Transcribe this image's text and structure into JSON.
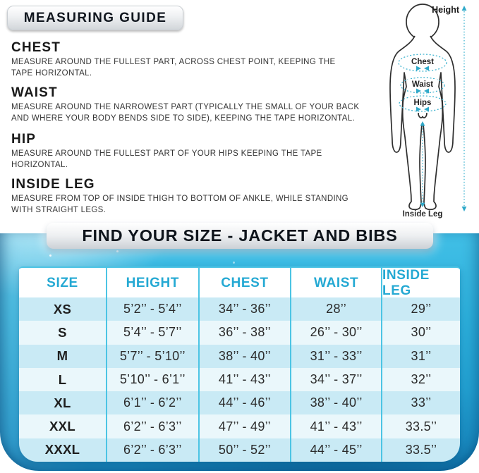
{
  "measuring_guide": {
    "title": "MEASURING GUIDE",
    "sections": [
      {
        "heading": "CHEST",
        "description": "MEASURE AROUND THE FULLEST PART, ACROSS CHEST POINT, KEEPING THE TAPE HORIZONTAL."
      },
      {
        "heading": "WAIST",
        "description": "MEASURE AROUND THE NARROWEST PART (TYPICALLY THE SMALL OF YOUR BACK AND WHERE YOUR BODY BENDS SIDE TO SIDE), KEEPING THE TAPE HORIZONTAL."
      },
      {
        "heading": "HIP",
        "description": "MEASURE AROUND THE FULLEST PART OF YOUR HIPS KEEPING THE TAPE HORIZONTAL."
      },
      {
        "heading": "INSIDE LEG",
        "description": "MEASURE FROM TOP OF INSIDE THIGH TO BOTTOM OF ANKLE, WHILE STANDING WITH STRAIGHT LEGS."
      }
    ],
    "figure_labels": {
      "height": "Height",
      "chest": "Chest",
      "waist": "Waist",
      "hips": "Hips",
      "inside_leg": "Inside Leg"
    }
  },
  "size_chart": {
    "title": "FIND YOUR SIZE - JACKET AND BIBS",
    "columns": [
      "SIZE",
      "HEIGHT",
      "CHEST",
      "WAIST",
      "INSIDE LEG"
    ],
    "rows": [
      {
        "size": "XS",
        "height": "5’2’’ - 5’4’’",
        "chest": "34’’ - 36’’",
        "waist": "28’’",
        "inside_leg": "29’’"
      },
      {
        "size": "S",
        "height": "5’4’’ - 5’7’’",
        "chest": "36’’ - 38’’",
        "waist": "26’’ - 30’’",
        "inside_leg": "30’’"
      },
      {
        "size": "M",
        "height": "5’7’’ - 5’10’’",
        "chest": "38’’ - 40’’",
        "waist": "31’’ - 33’’",
        "inside_leg": "31’’"
      },
      {
        "size": "L",
        "height": "5’10’’ - 6’1’’",
        "chest": "41’’ - 43’’",
        "waist": "34’’ - 37’’",
        "inside_leg": "32’’"
      },
      {
        "size": "XL",
        "height": "6’1’’ - 6’2’’",
        "chest": "44’’ - 46’’",
        "waist": "38’’ - 40’’",
        "inside_leg": "33’’"
      },
      {
        "size": "XXL",
        "height": "6’2’’ - 6’3’’",
        "chest": "47’’ - 49’’",
        "waist": "41’’ - 43’’",
        "inside_leg": "33.5’’"
      },
      {
        "size": "XXXL",
        "height": "6’2’’ - 6’3’’",
        "chest": "50’’ - 52’’",
        "waist": "44’’ - 45’’",
        "inside_leg": "33.5’’"
      }
    ]
  },
  "colors": {
    "accent_cyan_text": "#25a9d3",
    "table_divider": "#4cc4e4",
    "row_alternate": "#c9eaf5",
    "row_light": "#eaf7fb",
    "water_top": "#41bfe6",
    "water_bottom": "#1a8fc6",
    "figure_teal": "#3eb3cf",
    "text_dark": "#1f1f1f"
  }
}
